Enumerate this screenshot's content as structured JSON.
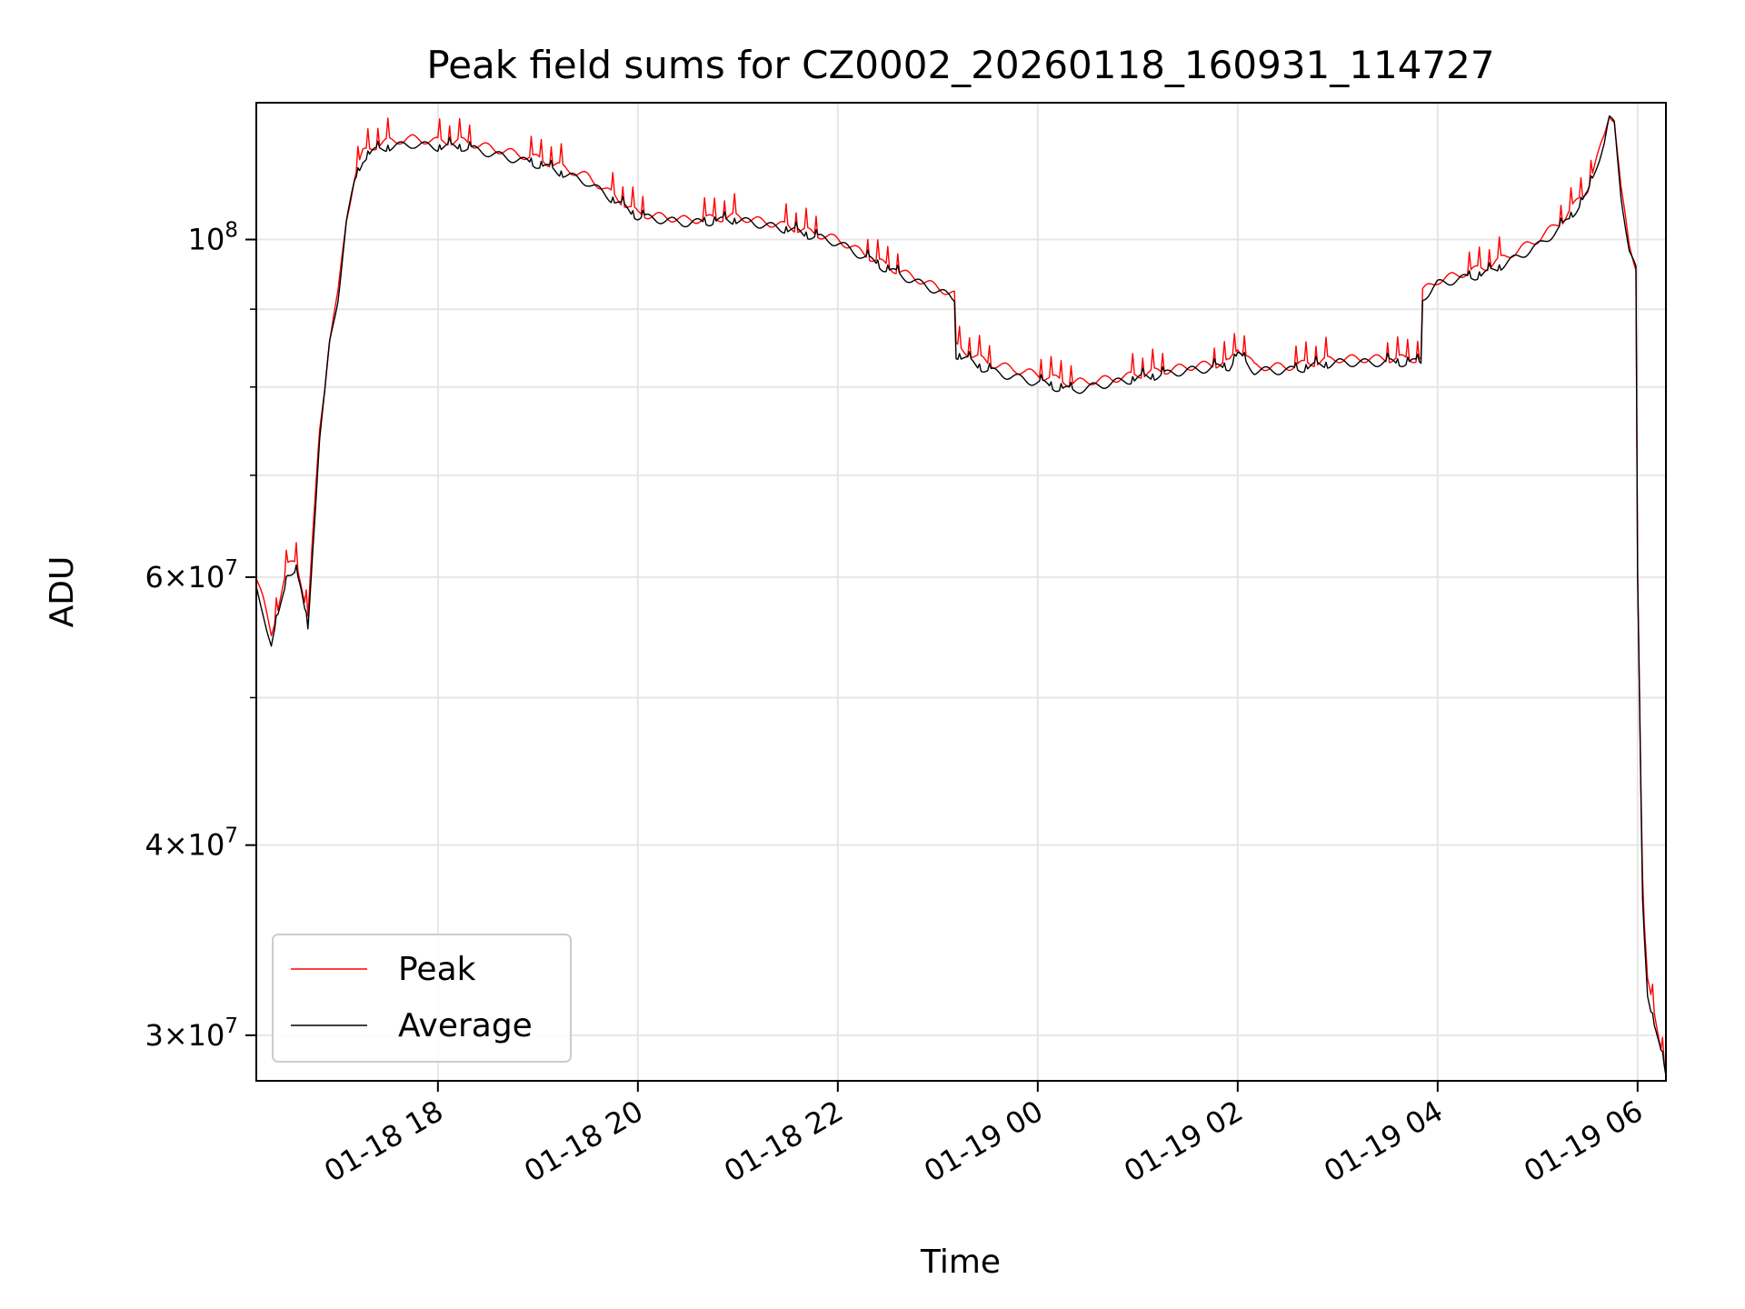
{
  "chart_data": {
    "type": "line",
    "title": "Peak field sums for CZ0002_20260118_160931_114727",
    "xlabel": "Time",
    "ylabel": "ADU",
    "y_scale": "log",
    "ylim": [
      28000000,
      123000000
    ],
    "xlim": [
      "2026-01-18 16:11",
      "2026-01-19 06:17"
    ],
    "grid": true,
    "legend_position": "lower-left",
    "x_ticks": [
      {
        "t": "2026-01-18 18:00",
        "label": "01-18 18"
      },
      {
        "t": "2026-01-18 20:00",
        "label": "01-18 20"
      },
      {
        "t": "2026-01-18 22:00",
        "label": "01-18 22"
      },
      {
        "t": "2026-01-19 00:00",
        "label": "01-19 00"
      },
      {
        "t": "2026-01-19 02:00",
        "label": "01-19 02"
      },
      {
        "t": "2026-01-19 04:00",
        "label": "01-19 04"
      },
      {
        "t": "2026-01-19 06:00",
        "label": "01-19 06"
      }
    ],
    "y_ticks_major": [
      {
        "value": 30000000,
        "base": "3",
        "exp": "7"
      },
      {
        "value": 40000000,
        "base": "4",
        "exp": "7"
      },
      {
        "value": 60000000,
        "base": "6",
        "exp": "7"
      },
      {
        "value": 100000000,
        "base": "10",
        "exp": "8"
      }
    ],
    "y_ticks_minor": [
      50000000,
      70000000,
      80000000,
      90000000
    ],
    "series": [
      {
        "name": "Peak",
        "color": "#ff0000",
        "x": [
          "2026-01-18 16:11",
          "2026-01-18 16:15",
          "2026-01-18 16:20",
          "2026-01-18 16:25",
          "2026-01-18 16:30",
          "2026-01-18 16:35",
          "2026-01-18 16:38",
          "2026-01-18 16:42",
          "2026-01-18 16:45",
          "2026-01-18 16:49",
          "2026-01-18 16:52",
          "2026-01-18 16:55",
          "2026-01-18 17:00",
          "2026-01-18 17:05",
          "2026-01-18 17:10",
          "2026-01-18 17:15",
          "2026-01-18 17:20",
          "2026-01-18 17:30",
          "2026-01-18 17:45",
          "2026-01-18 18:00",
          "2026-01-18 18:15",
          "2026-01-18 18:30",
          "2026-01-18 19:00",
          "2026-01-18 19:30",
          "2026-01-18 20:00",
          "2026-01-18 20:30",
          "2026-01-18 21:00",
          "2026-01-18 21:30",
          "2026-01-18 22:00",
          "2026-01-18 22:30",
          "2026-01-18 23:00",
          "2026-01-18 23:10",
          "2026-01-18 23:11",
          "2026-01-18 23:30",
          "2026-01-19 00:00",
          "2026-01-19 00:20",
          "2026-01-19 00:45",
          "2026-01-19 01:00",
          "2026-01-19 01:30",
          "2026-01-19 01:55",
          "2026-01-19 02:00",
          "2026-01-19 02:05",
          "2026-01-19 02:10",
          "2026-01-19 02:30",
          "2026-01-19 03:00",
          "2026-01-19 03:30",
          "2026-01-19 03:50",
          "2026-01-19 03:51",
          "2026-01-19 04:00",
          "2026-01-19 04:30",
          "2026-01-19 05:00",
          "2026-01-19 05:15",
          "2026-01-19 05:30",
          "2026-01-19 05:40",
          "2026-01-19 05:43",
          "2026-01-19 05:46",
          "2026-01-19 05:50",
          "2026-01-19 05:55",
          "2026-01-19 05:59",
          "2026-01-19 06:00",
          "2026-01-19 06:03",
          "2026-01-19 06:06",
          "2026-01-19 06:10",
          "2026-01-19 06:17"
        ],
        "values": [
          60000000,
          58000000,
          55000000,
          58000000,
          61000000,
          61500000,
          59500000,
          56500000,
          64000000,
          75000000,
          80000000,
          86000000,
          92000000,
          103000000,
          110000000,
          114000000,
          115000000,
          116000000,
          116500000,
          116000000,
          116000000,
          115000000,
          113000000,
          110000000,
          104000000,
          103000000,
          103500000,
          102000000,
          100000000,
          96000000,
          93000000,
          92000000,
          85000000,
          83000000,
          81500000,
          80500000,
          81000000,
          81500000,
          82500000,
          83000000,
          85000000,
          84000000,
          82500000,
          82500000,
          83500000,
          83500000,
          83500000,
          92500000,
          94000000,
          96000000,
          100000000,
          103000000,
          108000000,
          117000000,
          121000000,
          120000000,
          108000000,
          99000000,
          96000000,
          61000000,
          37000000,
          32500000,
          31000000,
          28500000
        ]
      },
      {
        "name": "Average",
        "color": "#000000",
        "x": [
          "2026-01-18 16:11",
          "2026-01-18 16:15",
          "2026-01-18 16:20",
          "2026-01-18 16:25",
          "2026-01-18 16:30",
          "2026-01-18 16:35",
          "2026-01-18 16:38",
          "2026-01-18 16:42",
          "2026-01-18 16:45",
          "2026-01-18 16:49",
          "2026-01-18 16:52",
          "2026-01-18 16:55",
          "2026-01-18 17:00",
          "2026-01-18 17:05",
          "2026-01-18 17:10",
          "2026-01-18 17:15",
          "2026-01-18 17:20",
          "2026-01-18 17:30",
          "2026-01-18 17:45",
          "2026-01-18 18:00",
          "2026-01-18 18:15",
          "2026-01-18 18:30",
          "2026-01-18 19:00",
          "2026-01-18 19:30",
          "2026-01-18 20:00",
          "2026-01-18 20:30",
          "2026-01-18 21:00",
          "2026-01-18 21:30",
          "2026-01-18 22:00",
          "2026-01-18 22:30",
          "2026-01-18 23:00",
          "2026-01-18 23:10",
          "2026-01-18 23:11",
          "2026-01-18 23:30",
          "2026-01-19 00:00",
          "2026-01-19 00:20",
          "2026-01-19 00:45",
          "2026-01-19 01:00",
          "2026-01-19 01:30",
          "2026-01-19 01:55",
          "2026-01-19 02:00",
          "2026-01-19 02:05",
          "2026-01-19 02:10",
          "2026-01-19 02:30",
          "2026-01-19 03:00",
          "2026-01-19 03:30",
          "2026-01-19 03:50",
          "2026-01-19 03:51",
          "2026-01-19 04:00",
          "2026-01-19 04:30",
          "2026-01-19 05:00",
          "2026-01-19 05:15",
          "2026-01-19 05:30",
          "2026-01-19 05:40",
          "2026-01-19 05:43",
          "2026-01-19 05:46",
          "2026-01-19 05:50",
          "2026-01-19 05:55",
          "2026-01-19 05:59",
          "2026-01-19 06:00",
          "2026-01-19 06:03",
          "2026-01-19 06:06",
          "2026-01-19 06:10",
          "2026-01-19 06:17"
        ],
        "values": [
          59000000,
          57000000,
          54000000,
          57000000,
          60500000,
          60500000,
          58500000,
          55500000,
          63000000,
          74000000,
          79000000,
          85500000,
          91500000,
          102500000,
          109000000,
          113000000,
          114000000,
          115000000,
          115500000,
          115000000,
          115000000,
          114000000,
          112000000,
          109000000,
          103500000,
          102500000,
          103000000,
          101500000,
          99500000,
          95500000,
          92500000,
          91500000,
          84000000,
          82000000,
          80500000,
          79500000,
          80500000,
          81000000,
          82000000,
          82500000,
          84000000,
          83000000,
          82000000,
          82000000,
          83000000,
          83000000,
          83000000,
          91500000,
          93500000,
          95000000,
          99000000,
          102000000,
          107000000,
          116000000,
          120000000,
          119000000,
          107000000,
          98500000,
          95500000,
          60000000,
          36500000,
          32000000,
          30500000,
          28200000
        ]
      }
    ]
  }
}
